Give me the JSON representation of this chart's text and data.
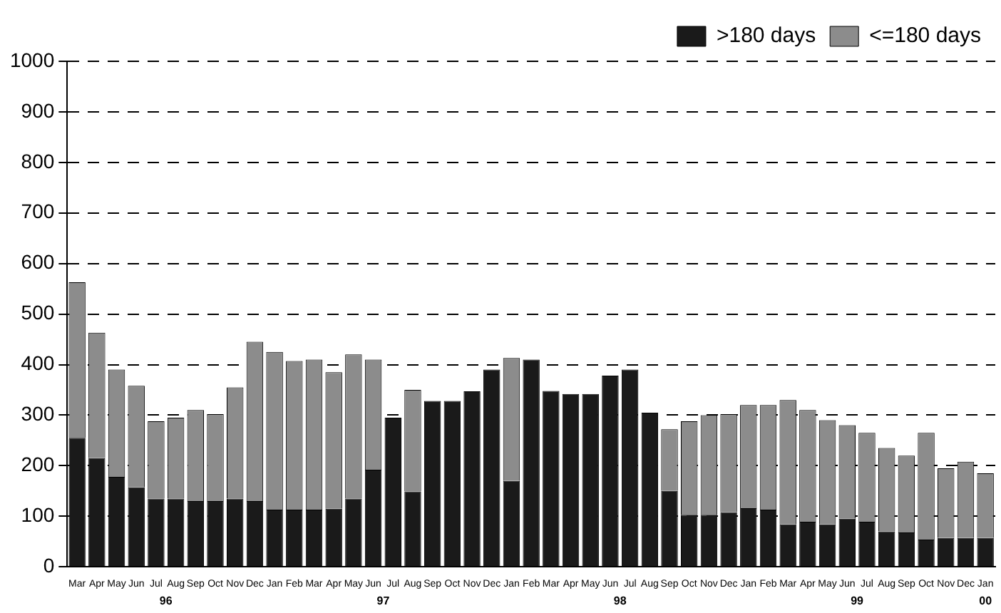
{
  "chart_data": {
    "type": "bar",
    "stacked": true,
    "categories": [
      "Mar",
      "Apr",
      "May",
      "Jun",
      "Jul",
      "Aug",
      "Sep",
      "Oct",
      "Nov",
      "Dec",
      "Jan",
      "Feb",
      "Mar",
      "Apr",
      "May",
      "Jun",
      "Jul",
      "Aug",
      "Sep",
      "Oct",
      "Nov",
      "Dec",
      "Jan",
      "Feb",
      "Mar",
      "Apr",
      "May",
      "Jun",
      "Jul",
      "Aug",
      "Sep",
      "Oct",
      "Nov",
      "Dec",
      "Jan",
      "Feb",
      "Mar",
      "Apr",
      "May",
      "Jun",
      "Jul",
      "Aug",
      "Sep",
      "Oct",
      "Nov",
      "Dec",
      "Jan"
    ],
    "series": [
      {
        "name": ">180 days",
        "color": "#1a1a1a",
        "values": [
          255,
          215,
          178,
          157,
          135,
          135,
          130,
          130,
          135,
          130,
          113,
          113,
          113,
          115,
          135,
          192,
          295,
          149,
          328,
          328,
          347,
          390,
          170,
          410,
          348,
          342,
          342,
          378,
          390,
          305,
          150,
          103,
          103,
          108,
          116,
          113,
          84,
          89,
          84,
          95,
          89,
          70,
          68,
          54,
          57,
          57,
          57
        ]
      },
      {
        "name": "<=180 days",
        "color": "#8c8c8c",
        "values": [
          308,
          248,
          212,
          201,
          153,
          160,
          180,
          172,
          220,
          315,
          312,
          294,
          297,
          270,
          285,
          218,
          0,
          201,
          0,
          0,
          0,
          0,
          243,
          0,
          0,
          0,
          0,
          0,
          0,
          0,
          122,
          185,
          197,
          194,
          204,
          207,
          246,
          221,
          206,
          185,
          176,
          165,
          152,
          211,
          138,
          151,
          128
        ]
      }
    ],
    "ylim": [
      0,
      1000
    ],
    "yticks": [
      0,
      100,
      200,
      300,
      400,
      500,
      600,
      700,
      800,
      900,
      1000
    ],
    "grid": "y",
    "legend": "top right",
    "annotations": [
      "96",
      "97",
      "98",
      "99",
      "00"
    ]
  }
}
